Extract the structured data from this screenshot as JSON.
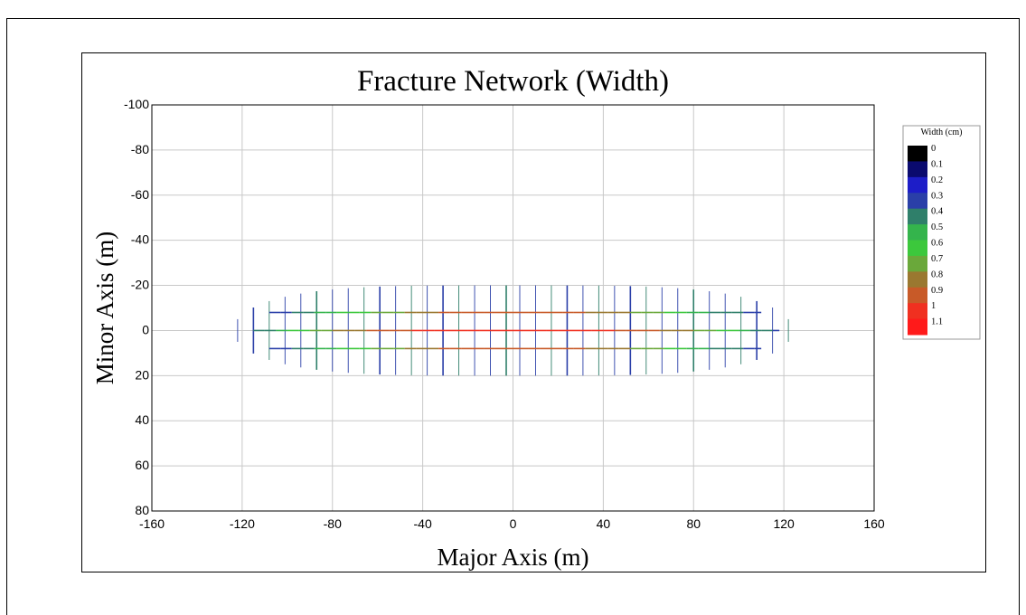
{
  "chart_data": {
    "type": "line",
    "title": "Fracture Network (Width)",
    "xlabel": "Major Axis (m)",
    "ylabel": "Minor Axis (m)",
    "xlim": [
      -160,
      160
    ],
    "ylim": [
      -100,
      80
    ],
    "y_inverted": true,
    "grid": true,
    "x_ticks": [
      "-160",
      "-120",
      "-80",
      "-40",
      "0",
      "40",
      "80",
      "120",
      "160"
    ],
    "y_ticks": [
      "-100",
      "-80",
      "-60",
      "-40",
      "-20",
      "0",
      "20",
      "40",
      "60",
      "80"
    ],
    "legend": {
      "title": "Width (cm)",
      "placement": "right",
      "ticks": [
        "0",
        "0.1",
        "0.2",
        "0.3",
        "0.4",
        "0.5",
        "0.6",
        "0.7",
        "0.8",
        "0.9",
        "1",
        "1.1"
      ],
      "colors": [
        "#000000",
        "#0a0a6e",
        "#1d1dc8",
        "#2a3fa8",
        "#2f7f6a",
        "#34b44c",
        "#3cc83c",
        "#6aa83a",
        "#9a7830",
        "#c85a28",
        "#f03020",
        "#ff1a1a"
      ]
    },
    "fracture_network": {
      "horizontal_fractures": [
        {
          "y": -8,
          "x_start": -108,
          "x_end": 110
        },
        {
          "y": 0,
          "x_start": -115,
          "x_end": 118
        },
        {
          "y": 8,
          "x_start": -108,
          "x_end": 110
        }
      ],
      "vertical_fracture_x": [
        -122,
        -115,
        -108,
        -101,
        -94,
        -87,
        -80,
        -73,
        -66,
        -59,
        -52,
        -45,
        -38,
        -31,
        -24,
        -17,
        -10,
        -3,
        3,
        10,
        17,
        24,
        31,
        38,
        45,
        52,
        59,
        66,
        73,
        80,
        87,
        94,
        101,
        108,
        115,
        122
      ],
      "max_half_length_y": 20,
      "width_color_scale": "center_high"
    }
  }
}
